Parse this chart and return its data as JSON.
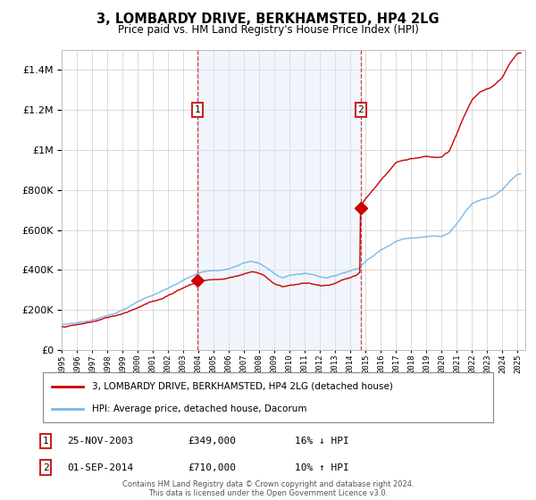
{
  "title": "3, LOMBARDY DRIVE, BERKHAMSTED, HP4 2LG",
  "subtitle": "Price paid vs. HM Land Registry's House Price Index (HPI)",
  "legend_line1": "3, LOMBARDY DRIVE, BERKHAMSTED, HP4 2LG (detached house)",
  "legend_line2": "HPI: Average price, detached house, Dacorum",
  "annotation1_date": "25-NOV-2003",
  "annotation1_price": "£349,000",
  "annotation1_hpi": "16% ↓ HPI",
  "annotation2_date": "01-SEP-2014",
  "annotation2_price": "£710,000",
  "annotation2_hpi": "10% ↑ HPI",
  "footer": "Contains HM Land Registry data © Crown copyright and database right 2024.\nThis data is licensed under the Open Government Licence v3.0.",
  "hpi_color": "#7ab8e8",
  "price_color": "#cc0000",
  "vline_color": "#cc2222",
  "shade_color": "#daeaf7",
  "ylim": [
    0,
    1500000
  ],
  "yticks": [
    0,
    200000,
    400000,
    600000,
    800000,
    1000000,
    1200000,
    1400000
  ],
  "xlim_start": 1995.0,
  "xlim_end": 2025.5,
  "purchase1_x": 2003.92,
  "purchase1_y": 349000,
  "purchase2_x": 2014.67,
  "purchase2_y": 710000,
  "background_color": "#ffffff",
  "grid_color": "#cccccc"
}
